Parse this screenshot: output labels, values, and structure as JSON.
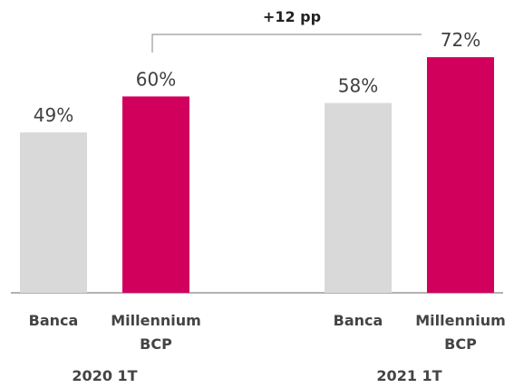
{
  "chart_data": {
    "type": "bar",
    "annotation": "+12 pp",
    "categories": [
      "2020 1T",
      "2021 1T"
    ],
    "series": [
      {
        "name": "Banca",
        "color": "#d9d9d9",
        "values": [
          49,
          58
        ],
        "value_labels": [
          "49%",
          "58%"
        ]
      },
      {
        "name": "Millennium BCP",
        "color": "#d1005d",
        "values": [
          60,
          72
        ],
        "value_labels": [
          "60%",
          "72%"
        ]
      }
    ]
  }
}
